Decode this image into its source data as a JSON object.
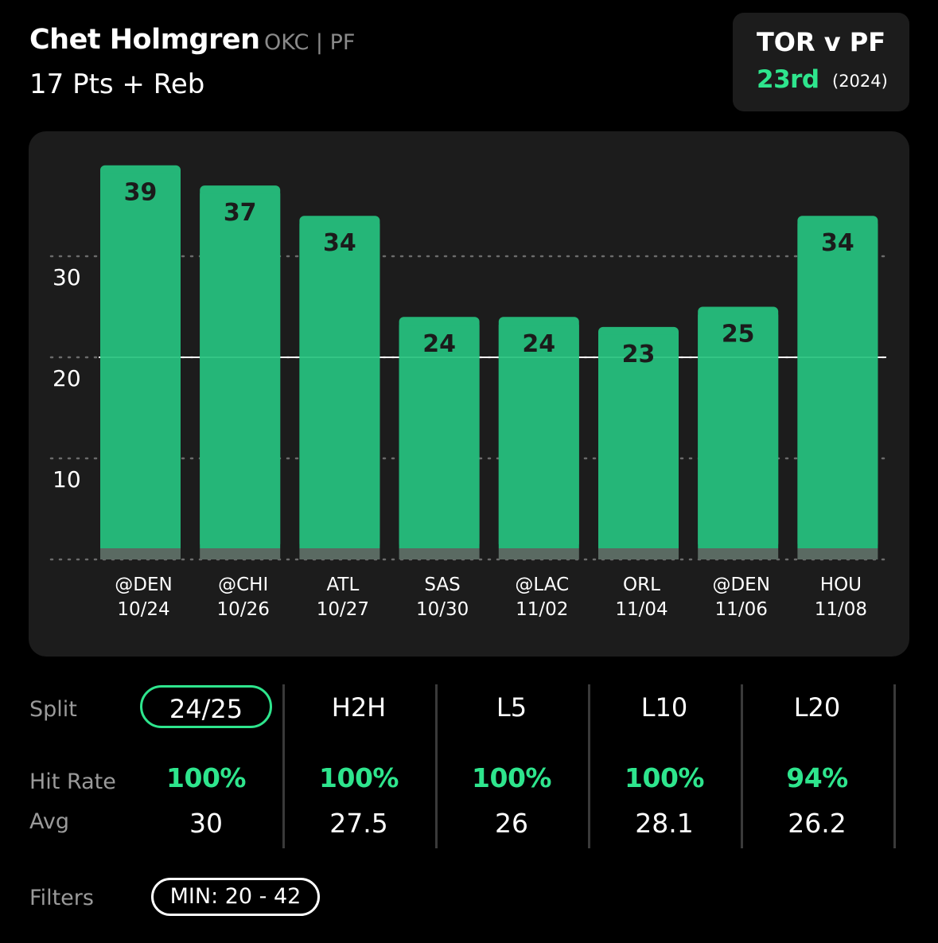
{
  "player": {
    "name": "Chet Holmgren",
    "meta": "OKC | PF",
    "prop": "17 Pts + Reb"
  },
  "matchup": {
    "title": "TOR v PF",
    "rank": "23rd",
    "year": "(2024)"
  },
  "colors": {
    "bar": "#25b678",
    "bar_base": "#5a6a62",
    "accent": "#2ee58d",
    "panel": "#1c1c1c"
  },
  "chart_data": {
    "type": "bar",
    "categories": [
      "@DEN 10/24",
      "@CHI 10/26",
      "ATL 10/27",
      "SAS 10/30",
      "@LAC 11/02",
      "ORL 11/04",
      "@DEN 11/06",
      "HOU 11/08"
    ],
    "category_lines": [
      [
        "@DEN",
        "10/24"
      ],
      [
        "@CHI",
        "10/26"
      ],
      [
        "ATL",
        "10/27"
      ],
      [
        "SAS",
        "10/30"
      ],
      [
        "@LAC",
        "11/02"
      ],
      [
        "ORL",
        "11/04"
      ],
      [
        "@DEN",
        "11/06"
      ],
      [
        "HOU",
        "11/08"
      ]
    ],
    "values": [
      39,
      37,
      34,
      24,
      24,
      23,
      25,
      34
    ],
    "yticks": [
      10,
      20,
      30
    ],
    "ylim": [
      0,
      40
    ],
    "reference_line": 20,
    "grid": true
  },
  "splits": {
    "row_labels": {
      "split": "Split",
      "hit_rate": "Hit Rate",
      "avg": "Avg"
    },
    "columns": [
      {
        "label": "24/25",
        "hit_rate": "100%",
        "avg": "30",
        "active": true
      },
      {
        "label": "H2H",
        "hit_rate": "100%",
        "avg": "27.5",
        "active": false
      },
      {
        "label": "L5",
        "hit_rate": "100%",
        "avg": "26",
        "active": false
      },
      {
        "label": "L10",
        "hit_rate": "100%",
        "avg": "28.1",
        "active": false
      },
      {
        "label": "L20",
        "hit_rate": "94%",
        "avg": "26.2",
        "active": false
      }
    ]
  },
  "filters": {
    "label": "Filters",
    "min_filter": "MIN: 20 - 42"
  }
}
